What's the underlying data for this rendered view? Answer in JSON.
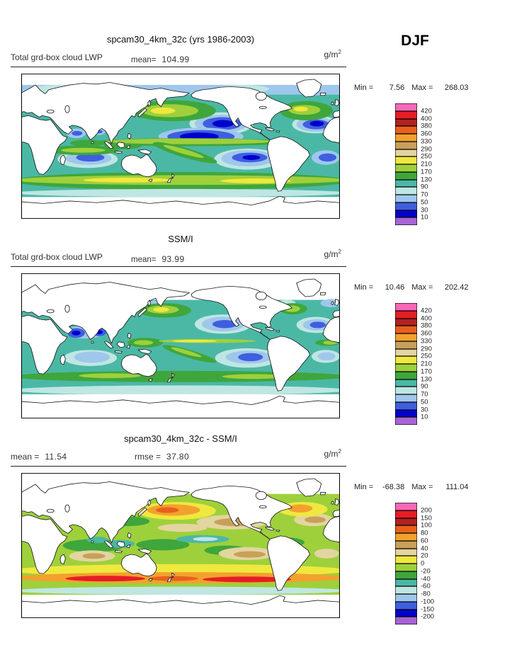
{
  "figure": {
    "season": "DJF"
  },
  "colorbar": {
    "colors_top_to_bottom": [
      "#F768B8",
      "#E51E25",
      "#B22222",
      "#E8601C",
      "#F2A12E",
      "#C8A05A",
      "#E3D5A0",
      "#EFE83E",
      "#9ED03C",
      "#3FA63C",
      "#4BB8A6",
      "#BFE6E2",
      "#9FC7EC",
      "#3F5FE0",
      "#0000CD",
      "#A864D4"
    ]
  },
  "panels": [
    {
      "id": "model",
      "title": "spcam30_4km_32c (yrs 1986-2003)",
      "var_label": "Total grd-box cloud LWP",
      "mean_label": "mean=",
      "mean_value": "104.99",
      "units_base": "g/m",
      "units_exp": "2",
      "min_label": "Min =",
      "min_value": "7.56",
      "max_label": "Max =",
      "max_value": "268.03",
      "colorbar_labels": [
        "420",
        "400",
        "380",
        "360",
        "330",
        "290",
        "250",
        "210",
        "170",
        "130",
        "90",
        "70",
        "50",
        "30",
        "10"
      ]
    },
    {
      "id": "obs",
      "title": "SSM/I",
      "var_label": "Total grd-box cloud LWP",
      "mean_label": "mean=",
      "mean_value": "93.99",
      "units_base": "g/m",
      "units_exp": "2",
      "min_label": "Min =",
      "min_value": "10.46",
      "max_label": "Max =",
      "max_value": "202.42",
      "colorbar_labels": [
        "420",
        "400",
        "380",
        "360",
        "330",
        "290",
        "250",
        "210",
        "170",
        "130",
        "90",
        "70",
        "50",
        "30",
        "10"
      ]
    },
    {
      "id": "difference",
      "title": "spcam30_4km_32c - SSM/I",
      "mean_label": "mean =",
      "mean_value": "11.54",
      "rmse_label": "rmse =",
      "rmse_value": "37.80",
      "units_base": "g/m",
      "units_exp": "2",
      "min_label": "Min =",
      "min_value": "-68.38",
      "max_label": "Max =",
      "max_value": "111.04",
      "colorbar_labels": [
        "200",
        "150",
        "100",
        "80",
        "60",
        "40",
        "20",
        "0",
        "-20",
        "-40",
        "-60",
        "-80",
        "-100",
        "-150",
        "-200"
      ]
    }
  ],
  "chart_data": [
    {
      "type": "heatmap",
      "title": "spcam30_4km_32c (yrs 1986-2003)",
      "variable": "Total grd-box cloud LWP",
      "season": "DJF",
      "units": "g/m^2",
      "mean": 104.99,
      "min": 7.56,
      "max": 268.03,
      "contour_levels": [
        10,
        30,
        50,
        70,
        90,
        130,
        170,
        210,
        250,
        290,
        330,
        360,
        380,
        400,
        420
      ],
      "legend_colors_top_to_bottom": [
        "#F768B8",
        "#E51E25",
        "#B22222",
        "#E8601C",
        "#F2A12E",
        "#C8A05A",
        "#E3D5A0",
        "#EFE83E",
        "#9ED03C",
        "#3FA63C",
        "#4BB8A6",
        "#BFE6E2",
        "#9FC7EC",
        "#3F5FE0",
        "#0000CD",
        "#A864D4"
      ],
      "layout": "global lat-lon map, longitude 0-360E left to right, colorbar at right"
    },
    {
      "type": "heatmap",
      "title": "SSM/I",
      "variable": "Total grd-box cloud LWP",
      "season": "DJF",
      "units": "g/m^2",
      "mean": 93.99,
      "min": 10.46,
      "max": 202.42,
      "contour_levels": [
        10,
        30,
        50,
        70,
        90,
        130,
        170,
        210,
        250,
        290,
        330,
        360,
        380,
        400,
        420
      ],
      "legend_colors_top_to_bottom": [
        "#F768B8",
        "#E51E25",
        "#B22222",
        "#E8601C",
        "#F2A12E",
        "#C8A05A",
        "#E3D5A0",
        "#EFE83E",
        "#9ED03C",
        "#3FA63C",
        "#4BB8A6",
        "#BFE6E2",
        "#9FC7EC",
        "#3F5FE0",
        "#0000CD",
        "#A864D4"
      ],
      "layout": "global lat-lon map (ocean-only satellite data), colorbar at right"
    },
    {
      "type": "heatmap",
      "title": "spcam30_4km_32c - SSM/I",
      "variable": "Total grd-box cloud LWP difference",
      "season": "DJF",
      "units": "g/m^2",
      "mean": 11.54,
      "rmse": 37.8,
      "min": -68.38,
      "max": 111.04,
      "contour_levels": [
        -200,
        -150,
        -100,
        -80,
        -60,
        -40,
        -20,
        0,
        20,
        40,
        60,
        80,
        100,
        150,
        200
      ],
      "legend_colors_top_to_bottom": [
        "#F768B8",
        "#E51E25",
        "#B22222",
        "#E8601C",
        "#F2A12E",
        "#C8A05A",
        "#E3D5A0",
        "#EFE83E",
        "#9ED03C",
        "#3FA63C",
        "#4BB8A6",
        "#BFE6E2",
        "#9FC7EC",
        "#3F5FE0",
        "#0000CD",
        "#A864D4"
      ],
      "layout": "global lat-lon difference map, colorbar at right"
    }
  ]
}
